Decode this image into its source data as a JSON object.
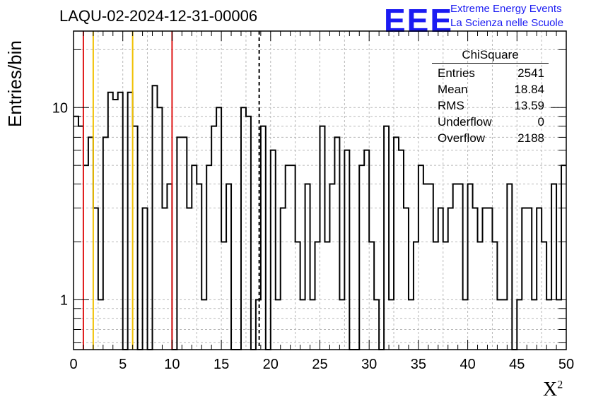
{
  "title": "LAQU-02-2024-12-31-00006",
  "branding": {
    "logo_text": "EEE",
    "line1": "Extreme Energy Events",
    "line2": "La Scienza nelle Scuole",
    "color": "#1b1bf2"
  },
  "stats_box": {
    "header": "ChiSquare",
    "rows": [
      {
        "label": "Entries",
        "value": "2541"
      },
      {
        "label": "Mean",
        "value": "18.84"
      },
      {
        "label": "RMS",
        "value": "13.59"
      },
      {
        "label": "Underflow",
        "value": "0"
      },
      {
        "label": "Overflow",
        "value": "2188"
      }
    ]
  },
  "chart_data": {
    "type": "histogram",
    "title": "LAQU-02-2024-12-31-00006",
    "xlabel": "X²",
    "ylabel": "Entries/bin",
    "xlim": [
      0,
      50
    ],
    "ylim": [
      0.55,
      25
    ],
    "yscale": "log",
    "grid": true,
    "bin_width": 0.5,
    "x_ticks": [
      0,
      5,
      10,
      15,
      20,
      25,
      30,
      35,
      40,
      45,
      50
    ],
    "y_ticks": [
      1,
      10
    ],
    "values": [
      9,
      8,
      5,
      7,
      3,
      1,
      7,
      12,
      11,
      12,
      0,
      12,
      8,
      0,
      3,
      0,
      13,
      10,
      3,
      4,
      0,
      7,
      7,
      3,
      5,
      4,
      1,
      5,
      8,
      10,
      2,
      4,
      0,
      0,
      10,
      9,
      0,
      1,
      8,
      0,
      6,
      1,
      3,
      5,
      5,
      2,
      1,
      4,
      1,
      2,
      8,
      2,
      4,
      7,
      1,
      6,
      0,
      0,
      5,
      6,
      2,
      1,
      0,
      8,
      1,
      7,
      6,
      3,
      1,
      2,
      5,
      4,
      4,
      2,
      3,
      2,
      3,
      4,
      4,
      1,
      4,
      3,
      2,
      3,
      3,
      2,
      1,
      1,
      4,
      0,
      1,
      3,
      3,
      1,
      3,
      2,
      1,
      4,
      1,
      5
    ],
    "vertical_lines": [
      {
        "x": 1,
        "color": "#e01818"
      },
      {
        "x": 2,
        "color": "#f0c000"
      },
      {
        "x": 6,
        "color": "#f0c000"
      },
      {
        "x": 10,
        "color": "#e01818"
      },
      {
        "x": 18.84,
        "color": "#000000",
        "style": "dashed"
      }
    ]
  }
}
